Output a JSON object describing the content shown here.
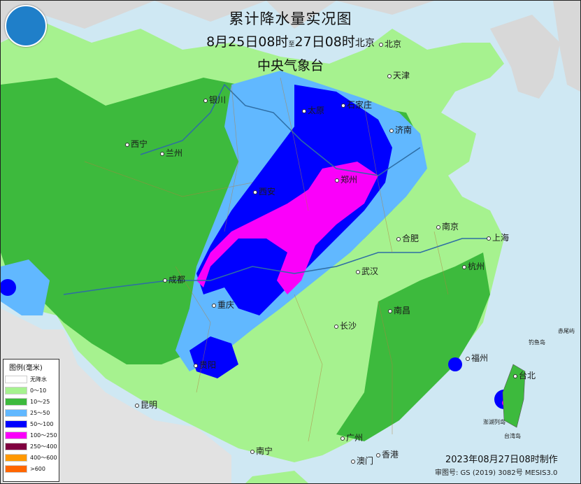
{
  "title": "累计降水量实况图",
  "period": {
    "start": "8月25日08时",
    "connector": "至",
    "end": "27日08时",
    "suffix": "北京"
  },
  "agency": "中央气象台",
  "legend": {
    "title": "图例(毫米)",
    "items": [
      {
        "label": "无降水",
        "color": "#ffffff"
      },
      {
        "label": "0～10",
        "color": "#a6f28f"
      },
      {
        "label": "10～25",
        "color": "#3dba3d"
      },
      {
        "label": "25～50",
        "color": "#61b8ff"
      },
      {
        "label": "50～100",
        "color": "#0000ff"
      },
      {
        "label": "100～250",
        "color": "#fa00fa"
      },
      {
        "label": "250～400",
        "color": "#800040"
      },
      {
        "label": "400～600",
        "color": "#ff9900"
      },
      {
        "label": ">600",
        "color": "#ff6600"
      }
    ]
  },
  "cities": {
    "beijing": "北京",
    "tianjin": "天津",
    "shijiazhuang": "石家庄",
    "taiyuan": "太原",
    "jinan": "济南",
    "yinchuan": "银川",
    "xining": "西宁",
    "lanzhou": "兰州",
    "xian": "西安",
    "zhengzhou": "郑州",
    "nanjing": "南京",
    "hefei": "合肥",
    "shanghai": "上海",
    "hangzhou": "杭州",
    "wuhan": "武汉",
    "chengdu": "成都",
    "chongqing": "重庆",
    "changsha": "长沙",
    "nanchang": "南昌",
    "fuzhou": "福州",
    "taibei": "台北",
    "guiyang": "贵阳",
    "kunming": "昆明",
    "nanning": "南宁",
    "guangzhou": "广州",
    "xianggang": "香港",
    "aomen": "澳门",
    "diaoyudao": "钓鱼岛",
    "chiweiyu": "赤尾屿",
    "penghu": "澎湖列岛",
    "taiwandao": "台湾岛"
  },
  "footer": {
    "made": "2023年08月27日08时制作",
    "mapno": "审图号: GS (2019) 3082号 MESIS3.0"
  }
}
